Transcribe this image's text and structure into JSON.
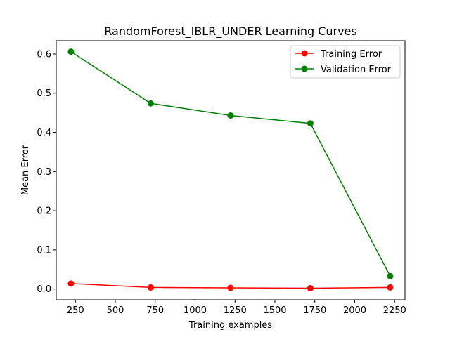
{
  "chart_data": {
    "type": "line",
    "title": "RandomForest_IBLR_UNDER Learning Curves",
    "xlabel": "Training examples",
    "ylabel": "Mean Error",
    "x": [
      222,
      722,
      1222,
      1722,
      2222
    ],
    "xlim": [
      130,
      2315
    ],
    "ylim": [
      -0.0275,
      0.634
    ],
    "xticks": [
      250,
      500,
      750,
      1000,
      1250,
      1500,
      1750,
      2000,
      2250
    ],
    "yticks": [
      0.0,
      0.1,
      0.2,
      0.3,
      0.4,
      0.5,
      0.6
    ],
    "xtick_labels": [
      "250",
      "500",
      "750",
      "1000",
      "1250",
      "1500",
      "1750",
      "2000",
      "2250"
    ],
    "ytick_labels": [
      "0.0",
      "0.1",
      "0.2",
      "0.3",
      "0.4",
      "0.5",
      "0.6"
    ],
    "grid": false,
    "legend_position": "top-right",
    "series": [
      {
        "name": "Training Error",
        "color": "#ff0000",
        "marker": "circle",
        "values": [
          0.014,
          0.004,
          0.003,
          0.002,
          0.004
        ]
      },
      {
        "name": "Validation Error",
        "color": "#008000",
        "marker": "circle",
        "values": [
          0.606,
          0.474,
          0.443,
          0.423,
          0.033
        ]
      }
    ]
  }
}
